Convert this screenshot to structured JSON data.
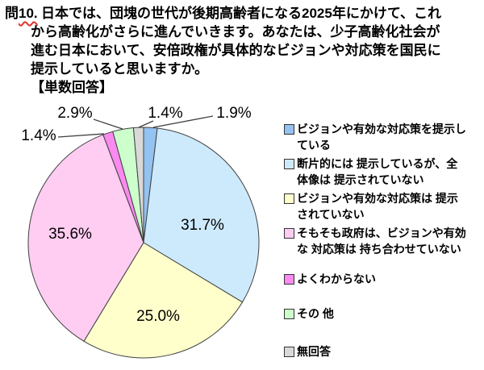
{
  "question": {
    "number_prefix": "問",
    "number_rest": "10.",
    "lines": [
      "日本では、団塊の世代が後期高齢者になる2025年にかけて、これ",
      "から高齢化がさらに進んでいきます。あなたは、少子高齢化社会が",
      "進む日本において、安倍政権が具体的なビジョンや対応策を国民に",
      "提示していると思いますか。",
      "【単数回答】"
    ]
  },
  "chart_data": {
    "type": "pie",
    "title": "問10. 安倍政権が具体的なビジョンや対応策を国民に提示していると思いますか。【単数回答】",
    "legend_position": "right",
    "unit": "%",
    "labels": [
      "ビジョンや有効な対応策を提示している",
      "断片的には 提示しているが、全体像は 提示されていない",
      "ビジョンや有効な対応策は 提示されていない",
      "そもそも政府は、ビジョンや有効な 対応策は 持ち合わせていない",
      "よくわからない",
      "その 他",
      "無回答"
    ],
    "values": [
      1.9,
      31.7,
      25.0,
      35.6,
      1.4,
      2.9,
      1.4
    ],
    "colors": [
      "#94C2F1",
      "#CDEAFD",
      "#FFFFCC",
      "#FFCCF2",
      "#FB8AF0",
      "#CCFFCC",
      "#D9D9D9"
    ],
    "slice_border_color": "#404040",
    "leader_line_color": "#404040"
  }
}
